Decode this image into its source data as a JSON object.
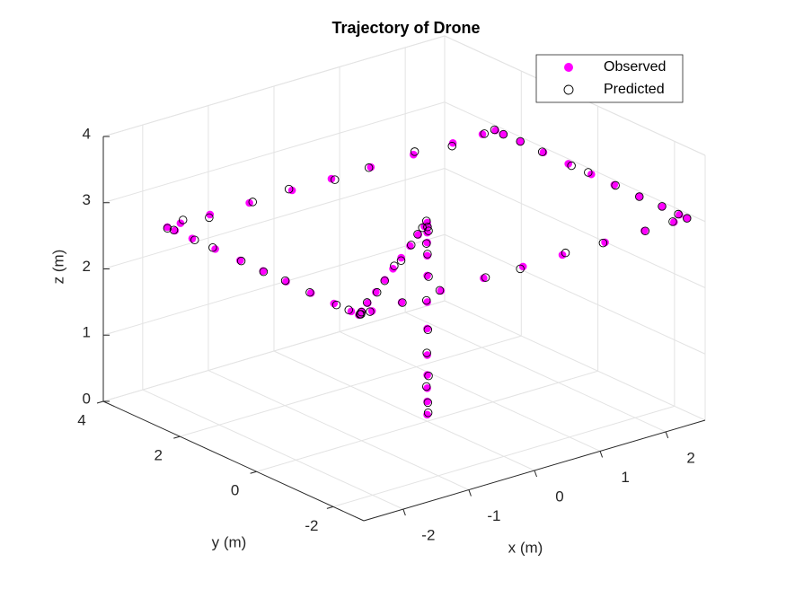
{
  "chart_data": {
    "type": "scatter3",
    "title": "Trajectory of Drone",
    "xlabel": "x (m)",
    "ylabel": "y (m)",
    "zlabel": "z (m)",
    "xlim": [
      -2.6,
      2.6
    ],
    "ylim": [
      -2.8,
      4
    ],
    "zlim": [
      0,
      4
    ],
    "xticks": [
      -2,
      -1,
      0,
      1,
      2
    ],
    "yticks": [
      -2,
      0,
      2,
      4
    ],
    "zticks": [
      0,
      1,
      2,
      3,
      4
    ],
    "grid": true,
    "legend": "northeast",
    "series": [
      {
        "name": "Observed",
        "color": "#ff00ff",
        "filled": true,
        "x": [
          0,
          0,
          0,
          0,
          0,
          0,
          0,
          0,
          0,
          0,
          0,
          0,
          0,
          -0.1,
          -0.33,
          -0.63,
          -0.95,
          -1.25,
          -1.55,
          -1.88,
          -2.18,
          -2.4,
          -2.5,
          -2.5,
          -2.5,
          -2.5,
          -2.5,
          -2.5,
          -2.5,
          -2.5,
          -2.5,
          -2.5,
          -2.5,
          -2.3,
          -1.85,
          -1.25,
          -0.6,
          0,
          0.6,
          1.25,
          1.85,
          2.3,
          2.5,
          2.5,
          2.5,
          2.5,
          2.5,
          2.5,
          2.5,
          2.5,
          2.5,
          2.5,
          2.5,
          2.3,
          1.85,
          1.25,
          0.6,
          0,
          -0.6,
          -1.25,
          -1.85,
          -2.3,
          -2.5
        ],
        "y": [
          0,
          0,
          0,
          0,
          0,
          0,
          0,
          0,
          0,
          0,
          0,
          0,
          0,
          -0.1,
          -0.33,
          -0.63,
          -0.95,
          -1.25,
          -1.55,
          -1.88,
          -2.18,
          -2.4,
          -2.5,
          -2.3,
          -1.85,
          -1.25,
          -0.6,
          0,
          0.6,
          1.25,
          1.85,
          2.3,
          2.5,
          2.5,
          2.5,
          2.5,
          2.5,
          2.5,
          2.5,
          2.5,
          2.5,
          2.5,
          2.5,
          2.3,
          1.85,
          1.25,
          0.6,
          0,
          -0.6,
          -1.25,
          -1.85,
          -2.3,
          -2.5,
          -2.5,
          -2.5,
          -2.5,
          -2.5,
          -2.5,
          -2.5,
          -2.5,
          -2.5,
          -2.5,
          -2.5
        ],
        "z": [
          0.1,
          0.3,
          0.5,
          0.7,
          1.0,
          1.4,
          1.8,
          2.2,
          2.5,
          2.7,
          2.85,
          2.95,
          3.0,
          3,
          3,
          3,
          3,
          3,
          3,
          3,
          3,
          3,
          3,
          3,
          3,
          3,
          3,
          3,
          3,
          3,
          3,
          3,
          3,
          3,
          3,
          3,
          3,
          3,
          3,
          3,
          3,
          3,
          3,
          3,
          3,
          3,
          3,
          3,
          3,
          3,
          3,
          3,
          3,
          3,
          3,
          3,
          3,
          3,
          3,
          3,
          3,
          3,
          3
        ]
      },
      {
        "name": "Predicted",
        "color": "#000000",
        "filled": false,
        "x": [
          0.02,
          0.01,
          0,
          0.02,
          0,
          0.01,
          0,
          0.02,
          0.01,
          0,
          0.02,
          0.01,
          0,
          -0.12,
          -0.35,
          -0.6,
          -0.97,
          -1.22,
          -1.57,
          -1.85,
          -2.2,
          -2.42,
          -2.48,
          -2.52,
          -2.48,
          -2.5,
          -2.53,
          -2.47,
          -2.5,
          -2.52,
          -2.48,
          -2.5,
          -2.51,
          -2.25,
          -1.88,
          -1.2,
          -0.63,
          0.04,
          0.57,
          1.28,
          1.82,
          2.33,
          2.49,
          2.52,
          2.48,
          2.5,
          2.53,
          2.47,
          2.5,
          2.52,
          2.48,
          2.5,
          2.51,
          2.27,
          1.88,
          1.22,
          0.63,
          -0.03,
          -0.57,
          -1.28,
          -1.82,
          -2.33,
          -2.49
        ],
        "y": [
          0.01,
          0,
          0.02,
          0,
          0.01,
          0,
          0.02,
          0,
          0.01,
          0.02,
          0,
          0.01,
          0.02,
          -0.08,
          -0.35,
          -0.61,
          -0.98,
          -1.23,
          -1.58,
          -1.86,
          -2.2,
          -2.43,
          -2.52,
          -2.27,
          -1.88,
          -1.22,
          -0.63,
          0.04,
          0.57,
          1.28,
          1.82,
          2.33,
          2.48,
          2.52,
          2.47,
          2.5,
          2.53,
          2.48,
          2.5,
          2.52,
          2.47,
          2.5,
          2.51,
          2.33,
          1.82,
          1.28,
          0.57,
          0.03,
          -0.63,
          -1.22,
          -1.88,
          -2.27,
          -2.48,
          -2.52,
          -2.47,
          -2.5,
          -2.53,
          -2.48,
          -2.5,
          -2.52,
          -2.47,
          -2.5,
          -2.51
        ],
        "z": [
          0.12,
          0.28,
          0.52,
          0.68,
          1.03,
          1.38,
          1.82,
          2.18,
          2.52,
          2.68,
          2.87,
          2.93,
          3.02,
          2.98,
          3.02,
          3,
          2.97,
          3.03,
          3,
          2.98,
          3.02,
          3,
          3.01,
          3.02,
          2.98,
          3,
          3.03,
          2.97,
          3,
          3.02,
          2.98,
          3,
          2.99,
          3.03,
          2.97,
          3,
          3.02,
          2.98,
          3,
          3.03,
          2.97,
          3,
          3.01,
          2.98,
          3.02,
          3,
          2.97,
          3.03,
          3,
          2.98,
          3.02,
          3,
          2.99,
          3.02,
          2.98,
          3,
          3.03,
          2.97,
          3,
          3.02,
          2.98,
          3,
          3.01
        ]
      }
    ]
  }
}
